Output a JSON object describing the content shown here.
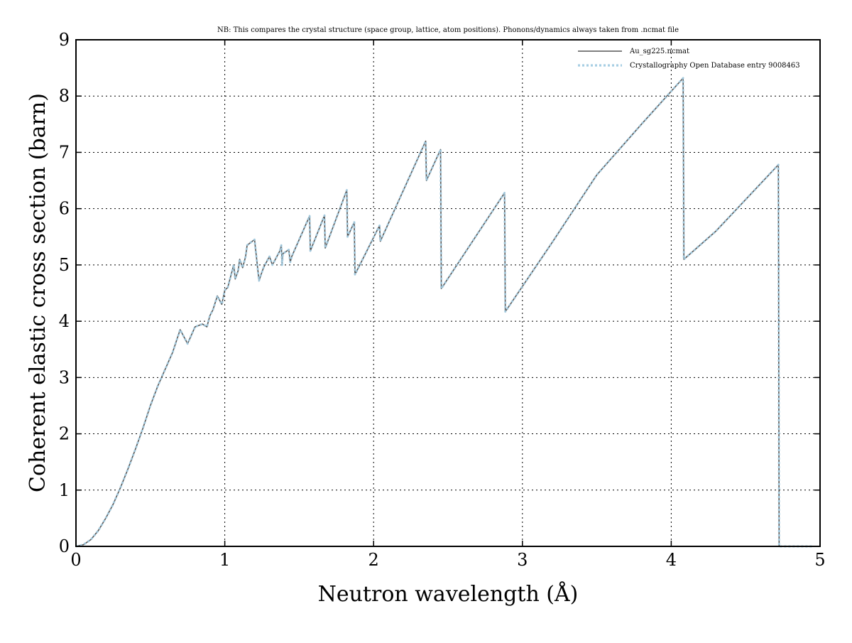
{
  "chart_data": {
    "type": "line",
    "title": "NB: This compares the crystal structure (space group, lattice, atom positions). Phonons/dynamics always taken from .ncmat file",
    "xlabel": "Neutron wavelength (Å)",
    "ylabel": "Coherent elastic cross section (barn)",
    "xlim": [
      0,
      5
    ],
    "ylim": [
      0,
      9
    ],
    "x_ticks": [
      "0",
      "1",
      "2",
      "3",
      "4",
      "5"
    ],
    "y_ticks": [
      "0",
      "1",
      "2",
      "3",
      "4",
      "5",
      "6",
      "7",
      "8",
      "9"
    ],
    "grid": true,
    "legend_position": "top-right",
    "series": [
      {
        "name": "Au_sg225.ncmat",
        "color": "#555555",
        "style": "solid",
        "x": [
          0,
          0.05,
          0.1,
          0.15,
          0.2,
          0.25,
          0.3,
          0.35,
          0.4,
          0.45,
          0.5,
          0.55,
          0.6,
          0.65,
          0.7,
          0.75,
          0.8,
          0.85,
          0.88,
          0.9,
          0.92,
          0.95,
          0.98,
          1.0,
          1.02,
          1.04,
          1.06,
          1.07,
          1.09,
          1.1,
          1.12,
          1.14,
          1.15,
          1.2,
          1.23,
          1.24,
          1.26,
          1.28,
          1.3,
          1.32,
          1.36,
          1.37,
          1.38,
          1.385,
          1.39,
          1.43,
          1.44,
          1.45,
          1.57,
          1.575,
          1.67,
          1.675,
          1.82,
          1.825,
          1.87,
          1.875,
          2.04,
          2.045,
          2.35,
          2.355,
          2.45,
          2.455,
          2.88,
          2.885,
          3.2,
          3.5,
          3.8,
          4.08,
          4.085,
          4.3,
          4.72,
          4.725,
          4.95
        ],
        "y": [
          0,
          0.03,
          0.12,
          0.28,
          0.5,
          0.75,
          1.05,
          1.38,
          1.73,
          2.1,
          2.5,
          2.85,
          3.15,
          3.45,
          3.85,
          3.6,
          3.9,
          3.95,
          3.9,
          4.1,
          4.2,
          4.45,
          4.3,
          4.55,
          4.6,
          4.8,
          5.0,
          4.75,
          4.9,
          5.1,
          4.95,
          5.15,
          5.35,
          5.45,
          4.72,
          4.8,
          4.95,
          5.05,
          5.15,
          5.0,
          5.2,
          5.25,
          5.35,
          5.0,
          5.2,
          5.27,
          5.05,
          5.15,
          5.87,
          5.25,
          5.88,
          5.3,
          6.33,
          5.5,
          5.76,
          4.83,
          5.7,
          5.42,
          7.2,
          6.5,
          7.05,
          4.58,
          6.28,
          4.17,
          5.4,
          6.6,
          7.5,
          8.32,
          5.1,
          5.6,
          6.78,
          0,
          0
        ]
      },
      {
        "name": "Crystallography Open Database entry 9008463",
        "color": "#a6cee3",
        "style": "dotted",
        "x": [
          0,
          0.05,
          0.1,
          0.15,
          0.2,
          0.25,
          0.3,
          0.35,
          0.4,
          0.45,
          0.5,
          0.55,
          0.6,
          0.65,
          0.7,
          0.75,
          0.8,
          0.85,
          0.88,
          0.9,
          0.92,
          0.95,
          0.98,
          1.0,
          1.02,
          1.04,
          1.06,
          1.07,
          1.09,
          1.1,
          1.12,
          1.14,
          1.15,
          1.2,
          1.23,
          1.24,
          1.26,
          1.28,
          1.3,
          1.32,
          1.36,
          1.37,
          1.38,
          1.385,
          1.39,
          1.43,
          1.44,
          1.45,
          1.57,
          1.575,
          1.67,
          1.675,
          1.82,
          1.825,
          1.87,
          1.875,
          2.04,
          2.045,
          2.35,
          2.355,
          2.45,
          2.455,
          2.88,
          2.885,
          3.2,
          3.5,
          3.8,
          4.08,
          4.085,
          4.3,
          4.72,
          4.725,
          4.95
        ],
        "y": [
          0,
          0.03,
          0.12,
          0.28,
          0.5,
          0.75,
          1.05,
          1.38,
          1.73,
          2.1,
          2.5,
          2.85,
          3.15,
          3.45,
          3.85,
          3.6,
          3.9,
          3.95,
          3.9,
          4.1,
          4.2,
          4.45,
          4.3,
          4.55,
          4.6,
          4.8,
          5.0,
          4.75,
          4.9,
          5.1,
          4.95,
          5.15,
          5.35,
          5.45,
          4.72,
          4.8,
          4.95,
          5.05,
          5.15,
          5.0,
          5.2,
          5.25,
          5.35,
          5.0,
          5.2,
          5.27,
          5.05,
          5.15,
          5.87,
          5.25,
          5.88,
          5.3,
          6.33,
          5.5,
          5.76,
          4.83,
          5.7,
          5.42,
          7.2,
          6.5,
          7.05,
          4.58,
          6.28,
          4.17,
          5.4,
          6.6,
          7.5,
          8.32,
          5.1,
          5.6,
          6.78,
          0,
          0
        ]
      }
    ]
  }
}
